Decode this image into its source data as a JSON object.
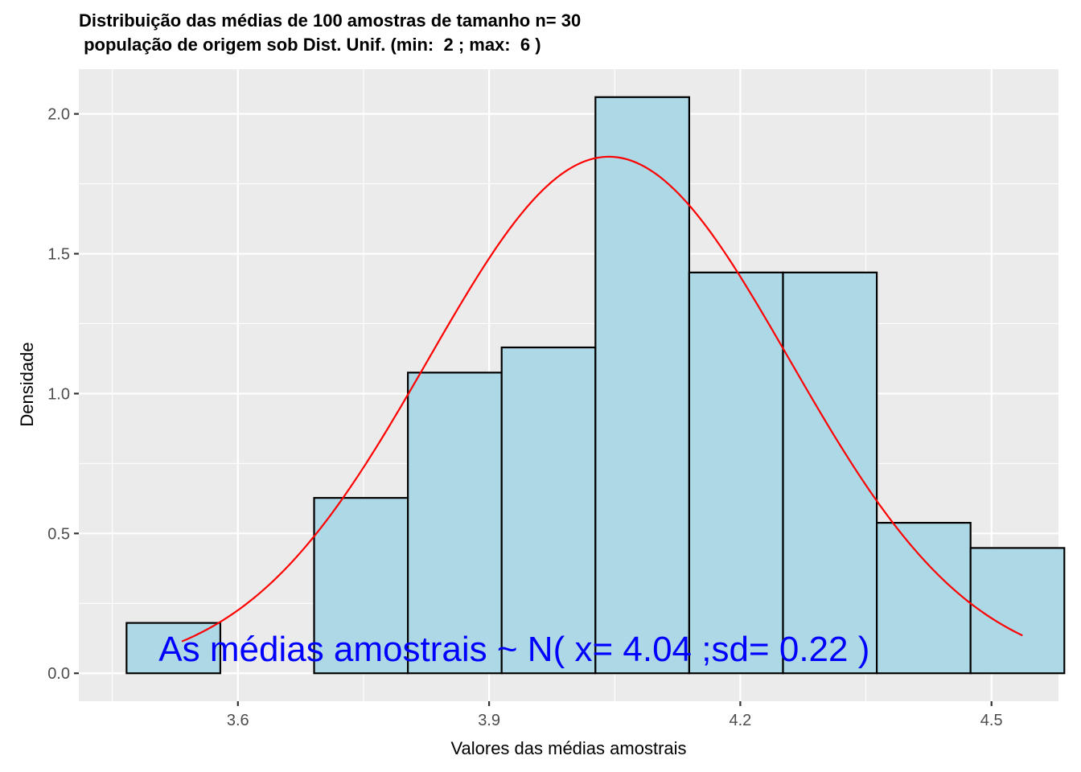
{
  "chart_data": {
    "type": "bar",
    "title": "Distribuição das médias de 100 amostras de tamanho n= 30",
    "subtitle": " população de origem sob Dist. Unif. (min:  2 ; max:  6 )",
    "xlabel": "Valores das médias amostrais",
    "ylabel": "Densidade",
    "xlim": [
      3.41,
      4.58
    ],
    "ylim": [
      -0.1,
      2.16
    ],
    "x_ticks": [
      3.6,
      3.9,
      4.2,
      4.5
    ],
    "x_tick_labels": [
      "3.6",
      "3.9",
      "4.2",
      "4.5"
    ],
    "y_ticks": [
      0.0,
      0.5,
      1.0,
      1.5,
      2.0
    ],
    "y_tick_labels": [
      "0.0",
      "0.5",
      "1.0",
      "1.5",
      "2.0"
    ],
    "bins": [
      {
        "x0": 3.467,
        "x1": 3.579,
        "density": 0.18
      },
      {
        "x0": 3.579,
        "x1": 3.691,
        "density": 0.0
      },
      {
        "x0": 3.691,
        "x1": 3.803,
        "density": 0.627
      },
      {
        "x0": 3.803,
        "x1": 3.915,
        "density": 1.075
      },
      {
        "x0": 3.915,
        "x1": 4.027,
        "density": 1.165
      },
      {
        "x0": 4.027,
        "x1": 4.139,
        "density": 2.06
      },
      {
        "x0": 4.139,
        "x1": 4.251,
        "density": 1.433
      },
      {
        "x0": 4.251,
        "x1": 4.363,
        "density": 1.433
      },
      {
        "x0": 4.363,
        "x1": 4.475,
        "density": 0.538
      },
      {
        "x0": 4.475,
        "x1": 4.587,
        "density": 0.448
      }
    ],
    "normal_curve": {
      "mean": 4.043,
      "sd": 0.216,
      "x_range": [
        3.533,
        4.537
      ]
    },
    "colors": {
      "bar_fill": "#add8e6",
      "bar_stroke": "#000000",
      "curve": "#ff0000",
      "annotation": "#0000ff",
      "panel": "#ebebeb",
      "grid": "#ffffff"
    },
    "annotation": {
      "text": "As médias amostrais ~ N( x= 4.04 ;sd= 0.22 )",
      "x": 3.93,
      "y": 0.0
    },
    "grid": true
  }
}
